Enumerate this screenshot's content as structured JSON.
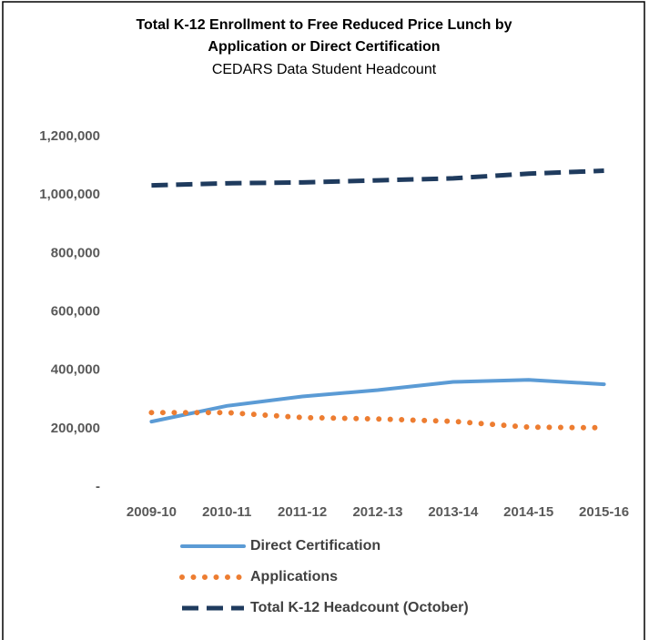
{
  "chart_data": {
    "type": "line",
    "title": [
      "Total K-12 Enrollment  to Free Reduced Price Lunch  by",
      "Application or Direct Certification"
    ],
    "subtitle": "CEDARS Data Student Headcount",
    "categories": [
      "2009-10",
      "2010-11",
      "2011-12",
      "2012-13",
      "2013-14",
      "2014-15",
      "2015-16"
    ],
    "series": [
      {
        "name": "Direct Certification",
        "color": "#5b9bd5",
        "dash": "solid",
        "values": [
          224000,
          278000,
          310000,
          332000,
          360000,
          367000,
          352000
        ]
      },
      {
        "name": "Applications",
        "color": "#ed7d31",
        "dash": "dotted",
        "values": [
          255000,
          255000,
          238000,
          233000,
          225000,
          205000,
          203000
        ]
      },
      {
        "name": "Total K-12 Headcount (October)",
        "color": "#1f3b5e",
        "dash": "dashed",
        "values": [
          1033000,
          1040000,
          1043000,
          1050000,
          1057000,
          1073000,
          1083000
        ]
      }
    ],
    "ylim": [
      0,
      1200000
    ],
    "yticks": [
      {
        "value": 0,
        "label": "-"
      },
      {
        "value": 200000,
        "label": "200,000"
      },
      {
        "value": 400000,
        "label": "400,000"
      },
      {
        "value": 600000,
        "label": "600,000"
      },
      {
        "value": 800000,
        "label": "800,000"
      },
      {
        "value": 1000000,
        "label": "1,000,000"
      },
      {
        "value": 1200000,
        "label": "1,200,000"
      }
    ],
    "grid": false,
    "legend": "bottom"
  }
}
